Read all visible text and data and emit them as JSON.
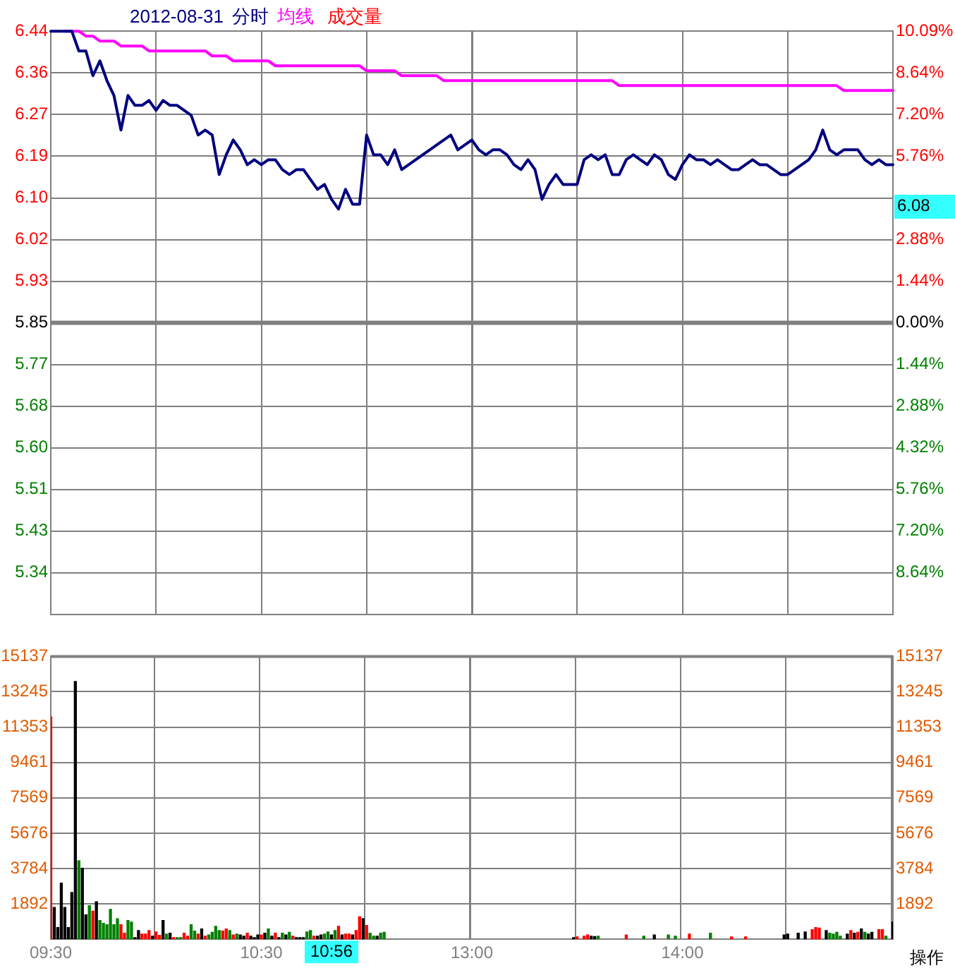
{
  "chart_data": [
    {
      "type": "line",
      "title": "2012-08-31",
      "legend": "top left",
      "marker": "none",
      "grid": true,
      "categories": [
        null,
        null,
        null,
        null,
        null,
        null,
        null,
        null,
        null,
        null,
        null,
        null,
        null,
        null,
        null,
        null,
        null,
        null,
        null,
        null,
        null,
        null,
        null,
        null,
        null,
        null,
        null,
        null,
        null,
        null,
        null,
        null,
        null,
        null,
        null,
        null,
        null,
        null,
        null,
        null,
        null,
        null,
        null,
        null,
        null,
        null,
        null,
        null,
        null,
        null,
        null,
        null,
        null,
        null,
        null,
        null,
        null,
        null,
        null,
        null,
        null,
        null,
        null,
        null,
        null,
        null,
        null,
        null,
        null,
        null,
        null,
        null,
        null,
        null,
        null,
        null,
        null,
        null,
        null,
        null,
        null,
        null,
        null,
        null,
        null,
        null,
        null,
        null,
        null,
        null,
        null,
        null,
        null,
        null,
        null,
        null,
        null,
        null,
        null,
        null,
        null,
        null,
        null,
        null,
        null,
        null,
        null,
        null,
        null,
        null,
        null,
        null,
        null,
        null,
        null,
        null,
        null,
        null,
        null,
        null,
        null
      ],
      "ylim": [
        5.2597,
        6.4403
      ],
      "yticks": [
        {
          "value": 6.4403,
          "label": "6.44"
        },
        {
          "value": 6.3554,
          "label": "6.36"
        },
        {
          "value": 6.2712,
          "label": "6.27"
        },
        {
          "value": 6.187,
          "label": "6.19"
        },
        {
          "value": 6.1027,
          "label": "6.10"
        },
        {
          "value": 6.0185,
          "label": "6.02"
        },
        {
          "value": 5.9342,
          "label": "5.93"
        },
        5.85,
        {
          "value": 5.7658,
          "label": "5.77"
        },
        {
          "value": 5.6815,
          "label": "5.68"
        },
        {
          "value": 5.5973,
          "label": "5.60"
        },
        {
          "value": 5.513,
          "label": "5.51"
        },
        {
          "value": 5.4288,
          "label": "5.43"
        },
        {
          "value": 5.3446,
          "label": "5.34"
        }
      ],
      "y2lim": [
        -10.09,
        10.09
      ],
      "y2ticks": [
        {
          "value": 10.09,
          "label": "10.09%"
        },
        {
          "value": 8.64,
          "label": "8.64%"
        },
        {
          "value": 7.2,
          "label": "7.20%"
        },
        {
          "value": 5.76,
          "label": "5.76%"
        },
        {
          "value": 2.88,
          "label": "2.88%"
        },
        {
          "value": 1.44,
          "label": "1.44%"
        },
        {
          "value": 0,
          "label": "0.00%"
        },
        {
          "value": -1.44,
          "label": "1.44%"
        },
        {
          "value": -2.88,
          "label": "2.88%"
        },
        {
          "value": -4.32,
          "label": "4.32%"
        },
        {
          "value": -5.76,
          "label": "5.76%"
        },
        {
          "value": -7.2,
          "label": "7.20%"
        },
        {
          "value": -8.64,
          "label": "8.64%"
        }
      ],
      "ref_lines": [
        {
          "axis": "y",
          "value": 5.85,
          "color": "#808080"
        }
      ],
      "annotations": [
        "6.08"
      ],
      "series": [
        {
          "name": "分时",
          "color": "#000080",
          "values": [
            6.44,
            6.44,
            6.44,
            6.44,
            6.4,
            6.4,
            6.35,
            6.38,
            6.34,
            6.31,
            6.24,
            6.31,
            6.29,
            6.29,
            6.3,
            6.28,
            6.3,
            6.29,
            6.29,
            6.28,
            6.27,
            6.23,
            6.24,
            6.23,
            6.15,
            6.19,
            6.22,
            6.2,
            6.17,
            6.18,
            6.17,
            6.18,
            6.18,
            6.16,
            6.15,
            6.16,
            6.16,
            6.14,
            6.12,
            6.13,
            6.1,
            6.08,
            6.12,
            6.09,
            6.09,
            6.23,
            6.19,
            6.19,
            6.17,
            6.2,
            6.16,
            6.17,
            6.18,
            6.19,
            6.2,
            6.21,
            6.22,
            6.23,
            6.2,
            6.21,
            6.22,
            6.2,
            6.19,
            6.2,
            6.2,
            6.19,
            6.17,
            6.16,
            6.18,
            6.16,
            6.1,
            6.13,
            6.15,
            6.13,
            6.13,
            6.13,
            6.18,
            6.19,
            6.18,
            6.19,
            6.15,
            6.15,
            6.18,
            6.19,
            6.18,
            6.17,
            6.19,
            6.18,
            6.15,
            6.14,
            6.17,
            6.19,
            6.18,
            6.18,
            6.17,
            6.18,
            6.17,
            6.16,
            6.16,
            6.17,
            6.18,
            6.17,
            6.17,
            6.16,
            6.15,
            6.15,
            6.16,
            6.17,
            6.18,
            6.2,
            6.24,
            6.2,
            6.19,
            6.2,
            6.2,
            6.2,
            6.18,
            6.17,
            6.18,
            6.17,
            6.17
          ]
        },
        {
          "name": "均线",
          "color": "#ff00ff",
          "values": [
            null,
            null,
            6.44,
            6.44,
            6.44,
            6.43,
            6.43,
            6.42,
            6.42,
            6.42,
            6.41,
            6.41,
            6.41,
            6.41,
            6.4,
            6.4,
            6.4,
            6.4,
            6.4,
            6.4,
            6.4,
            6.4,
            6.4,
            6.39,
            6.39,
            6.39,
            6.38,
            6.38,
            6.38,
            6.38,
            6.38,
            6.38,
            6.37,
            6.37,
            6.37,
            6.37,
            6.37,
            6.37,
            6.37,
            6.37,
            6.37,
            6.37,
            6.37,
            6.37,
            6.37,
            6.36,
            6.36,
            6.36,
            6.36,
            6.36,
            6.35,
            6.35,
            6.35,
            6.35,
            6.35,
            6.35,
            6.34,
            6.34,
            6.34,
            6.34,
            6.34,
            6.34,
            6.34,
            6.34,
            6.34,
            6.34,
            6.34,
            6.34,
            6.34,
            6.34,
            6.34,
            6.34,
            6.34,
            6.34,
            6.34,
            6.34,
            6.34,
            6.34,
            6.34,
            6.34,
            6.34,
            6.33,
            6.33,
            6.33,
            6.33,
            6.33,
            6.33,
            6.33,
            6.33,
            6.33,
            6.33,
            6.33,
            6.33,
            6.33,
            6.33,
            6.33,
            6.33,
            6.33,
            6.33,
            6.33,
            6.33,
            6.33,
            6.33,
            6.33,
            6.33,
            6.33,
            6.33,
            6.33,
            6.33,
            6.33,
            6.33,
            6.33,
            6.33,
            6.32,
            6.32,
            6.32,
            6.32,
            6.32,
            6.32,
            6.32,
            6.32
          ]
        }
      ]
    },
    {
      "type": "bar",
      "legend": "top left",
      "grid": true,
      "categories": [
        "09:30",
        null,
        null,
        null,
        null,
        null,
        null,
        null,
        null,
        null,
        null,
        null,
        null,
        null,
        null,
        null,
        null,
        null,
        null,
        null,
        null,
        null,
        null,
        null,
        null,
        null,
        null,
        null,
        null,
        null,
        null,
        null,
        null,
        null,
        null,
        null,
        null,
        null,
        null,
        null,
        null,
        null,
        null,
        null,
        null,
        null,
        null,
        null,
        null,
        null,
        null,
        null,
        null,
        null,
        null,
        null,
        null,
        null,
        null,
        null,
        "10:30",
        null,
        null,
        null,
        null,
        null,
        null,
        null,
        null,
        null,
        null,
        null,
        null,
        null,
        null,
        null,
        null,
        null,
        null,
        null,
        null,
        null,
        null,
        null,
        null,
        null,
        null,
        null,
        null,
        null,
        null,
        null,
        null,
        null,
        null,
        null,
        null,
        null,
        null,
        null,
        null,
        null,
        null,
        null,
        null,
        null,
        null,
        null,
        null,
        null,
        null,
        null,
        null,
        null,
        null,
        null,
        null,
        null,
        null,
        null,
        "13:00",
        null,
        null,
        null,
        null,
        null,
        null,
        null,
        null,
        null,
        null,
        null,
        null,
        null,
        null,
        null,
        null,
        null,
        null,
        null,
        null,
        null,
        null,
        null,
        null,
        null,
        null,
        null,
        null,
        null,
        null,
        null,
        null,
        null,
        null,
        null,
        null,
        null,
        null,
        null,
        null,
        null,
        null,
        null,
        null,
        null,
        null,
        null,
        null,
        null,
        null,
        null,
        null,
        null,
        null,
        null,
        null,
        null,
        null,
        null,
        "14:00",
        null,
        null,
        null,
        null,
        null,
        null,
        null,
        null,
        null,
        null,
        null,
        null,
        null,
        null,
        null,
        null,
        null,
        null,
        null,
        null,
        null,
        null,
        null,
        null,
        null,
        null,
        null,
        null,
        null,
        null,
        null,
        null,
        null,
        null,
        null,
        null,
        null,
        null,
        null,
        null,
        null,
        null,
        null,
        null,
        null,
        null,
        null,
        null,
        null,
        null,
        null,
        null,
        null,
        null,
        null,
        null,
        null,
        null,
        null,
        null
      ],
      "ylim": [
        0,
        15137
      ],
      "yticks": [
        1892,
        3784,
        5676,
        7569,
        9461,
        11353,
        13245,
        15137
      ],
      "y2lim": [
        0,
        15137
      ],
      "y2ticks": [
        1892,
        3784,
        5676,
        7569,
        9461,
        11353,
        13245,
        15137
      ],
      "annotations": [
        "10:56",
        "操作"
      ],
      "series": [
        {
          "name": "成交量",
          "values": [
            11900,
            1700,
            620,
            3000,
            1700,
            620,
            2500,
            13800,
            4200,
            3800,
            1300,
            1800,
            1500,
            2000,
            1000,
            850,
            780,
            1600,
            780,
            1100,
            780,
            320,
            1000,
            920,
            90,
            460,
            280,
            280,
            460,
            160,
            390,
            210,
            1000,
            280,
            320,
            90,
            90,
            90,
            320,
            160,
            780,
            440,
            280,
            550,
            160,
            230,
            370,
            690,
            460,
            440,
            550,
            460,
            230,
            280,
            230,
            160,
            320,
            160,
            90,
            230,
            230,
            320,
            550,
            160,
            320,
            90,
            320,
            230,
            370,
            160,
            90,
            90,
            90,
            390,
            460,
            160,
            160,
            230,
            280,
            390,
            230,
            460,
            690,
            230,
            280,
            280,
            230,
            460,
            1200,
            1100,
            740,
            320,
            160,
            160,
            320,
            370,
            null,
            null,
            null,
            null,
            null,
            null,
            null,
            null,
            null,
            null,
            null,
            null,
            null,
            null,
            null,
            null,
            null,
            null,
            null,
            null,
            null,
            null,
            null,
            null,
            null,
            null,
            null,
            null,
            null,
            null,
            null,
            null,
            null,
            null,
            null,
            null,
            null,
            null,
            null,
            null,
            null,
            null,
            null,
            null,
            null,
            null,
            null,
            null,
            null,
            null,
            null,
            null,
            null,
            90,
            120,
            null,
            160,
            230,
            160,
            140,
            160,
            null,
            null,
            null,
            null,
            null,
            null,
            null,
            230,
            null,
            null,
            null,
            null,
            160,
            null,
            null,
            230,
            null,
            null,
            null,
            230,
            null,
            160,
            null,
            null,
            null,
            280,
            null,
            null,
            null,
            null,
            null,
            320,
            null,
            null,
            null,
            null,
            null,
            120,
            null,
            null,
            null,
            120,
            null,
            null,
            null,
            null,
            null,
            null,
            null,
            null,
            null,
            null,
            230,
            280,
            null,
            null,
            320,
            null,
            390,
            null,
            510,
            620,
            600,
            null,
            460,
            320,
            280,
            370,
            160,
            null,
            280,
            460,
            320,
            370,
            550,
            370,
            280,
            370,
            null,
            510,
            510,
            160,
            null,
            920
          ],
          "colors": [
            "#ff0000",
            "#000000",
            "#000000",
            "#000000",
            "#000000",
            "#000000",
            "#000000",
            "#000000",
            "#008000",
            "#000000",
            "#000000",
            "#008000",
            "#ff0000",
            "#000000",
            "#008000",
            "#008000",
            "#008000",
            "#008000",
            "#008000",
            "#008000",
            "#ff0000",
            "#ff0000",
            "#008000",
            "#008000",
            "#000000",
            "#000000",
            "#ff0000",
            "#ff0000",
            "#ff0000",
            "#000000",
            "#ff0000",
            "#ff0000",
            "#000000",
            "#008000",
            "#000000",
            "#ff0000",
            "#008000",
            "#008000",
            "#ff0000",
            "#ff0000",
            "#008000",
            "#008000",
            "#ff0000",
            "#000000",
            "#ff0000",
            "#008000",
            "#008000",
            "#008000",
            "#008000",
            "#ff0000",
            "#ff0000",
            "#008000",
            "#ff0000",
            "#008000",
            "#000000",
            "#000000",
            "#ff0000",
            "#000000",
            "#000000",
            "#000000",
            "#ff0000",
            "#000000",
            "#008000",
            "#000000",
            "#ff0000",
            "#000000",
            "#008000",
            "#000000",
            "#008000",
            "#ff0000",
            "#000000",
            "#000000",
            "#000000",
            "#008000",
            "#008000",
            "#ff0000",
            "#000000",
            "#000000",
            "#008000",
            "#008000",
            "#000000",
            "#008000",
            "#ff0000",
            "#000000",
            "#ff0000",
            "#ff0000",
            "#000000",
            "#ff0000",
            "#ff0000",
            "#000000",
            "#ff0000",
            "#008000",
            "#008000",
            "#000000",
            "#008000",
            "#008000",
            null,
            null,
            null,
            null,
            null,
            null,
            null,
            null,
            null,
            null,
            null,
            null,
            null,
            null,
            null,
            null,
            null,
            null,
            null,
            null,
            null,
            null,
            null,
            null,
            null,
            null,
            null,
            null,
            null,
            null,
            null,
            null,
            null,
            null,
            null,
            null,
            null,
            null,
            null,
            null,
            null,
            null,
            null,
            null,
            null,
            null,
            null,
            null,
            null,
            null,
            null,
            null,
            null,
            "#000000",
            "#ff0000",
            null,
            "#ff0000",
            "#ff0000",
            "#000000",
            "#000000",
            "#008000",
            null,
            null,
            null,
            null,
            null,
            null,
            null,
            "#ff0000",
            null,
            null,
            null,
            null,
            "#008000",
            null,
            null,
            "#000000",
            null,
            null,
            null,
            "#008000",
            null,
            "#008000",
            null,
            null,
            null,
            "#ff0000",
            null,
            null,
            null,
            null,
            null,
            "#008000",
            null,
            null,
            null,
            null,
            null,
            "#ff0000",
            null,
            null,
            null,
            "#ff0000",
            null,
            null,
            null,
            null,
            null,
            null,
            null,
            null,
            null,
            null,
            "#000000",
            "#000000",
            null,
            null,
            "#000000",
            null,
            "#000000",
            null,
            "#ff0000",
            "#ff0000",
            "#ff0000",
            null,
            "#000000",
            "#008000",
            "#008000",
            "#008000",
            "#008000",
            null,
            "#000000",
            "#ff0000",
            "#000000",
            "#ff0000",
            "#000000",
            "#008000",
            "#000000",
            "#000000",
            null,
            "#ff0000",
            "#ff0000",
            "#008000",
            null,
            "#000000"
          ]
        }
      ]
    }
  ]
}
